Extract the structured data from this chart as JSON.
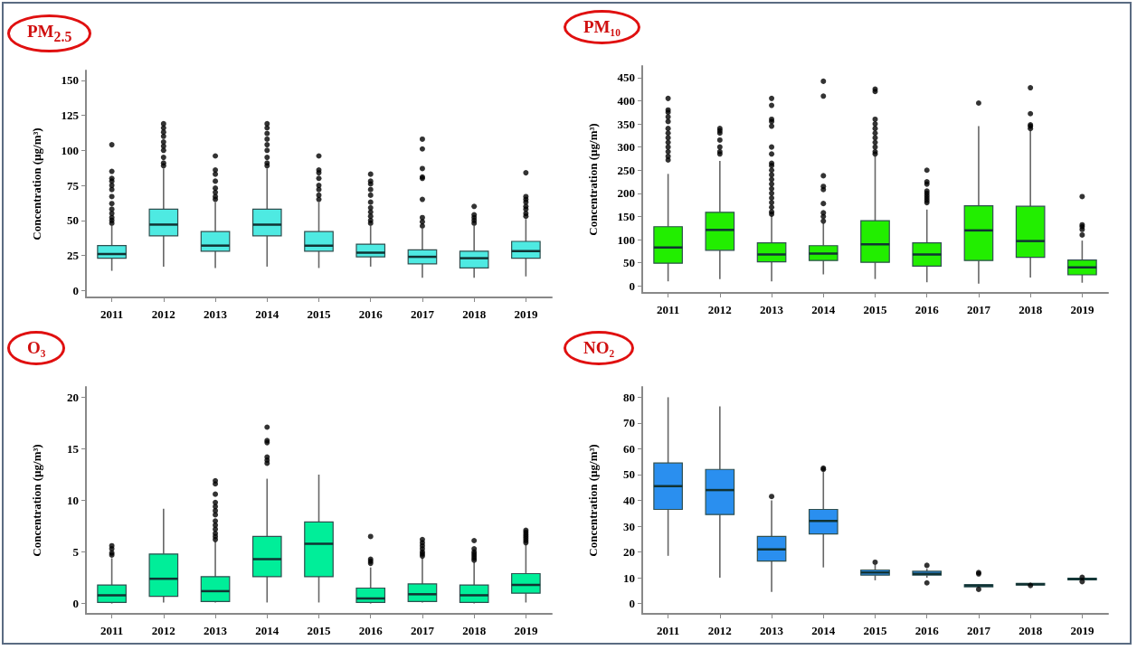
{
  "chart_data": [
    {
      "type": "box",
      "title": "PM$_{2.5}$",
      "ylabel": "Concentration (µg/m³)",
      "categories": [
        "2011",
        "2012",
        "2013",
        "2014",
        "2015",
        "2016",
        "2017",
        "2018",
        "2019"
      ],
      "ylim": [
        -5,
        157
      ],
      "yticks": [
        0,
        25,
        50,
        75,
        100,
        125,
        150
      ],
      "grid": false,
      "series": [
        {
          "color": "#4eeae2",
          "boxes": [
            {
              "low": 14,
              "q1": 23,
              "median": 26,
              "q3": 32,
              "high": 46,
              "outliers": [
                48,
                50,
                52,
                55,
                58,
                62,
                67,
                72,
                75,
                78,
                80,
                85,
                104
              ]
            },
            {
              "low": 17,
              "q1": 39,
              "median": 47,
              "q3": 58,
              "high": 87,
              "outliers": [
                89,
                91,
                95,
                100,
                103,
                106,
                110,
                113,
                116,
                119
              ]
            },
            {
              "low": 16,
              "q1": 28,
              "median": 32,
              "q3": 42,
              "high": 63,
              "outliers": [
                65,
                67,
                70,
                73,
                78,
                83,
                86,
                96
              ]
            },
            {
              "low": 17,
              "q1": 39,
              "median": 47,
              "q3": 58,
              "high": 87,
              "outliers": [
                89,
                91,
                95,
                100,
                104,
                108,
                112,
                116,
                119
              ]
            },
            {
              "low": 16,
              "q1": 28,
              "median": 32,
              "q3": 42,
              "high": 63,
              "outliers": [
                65,
                68,
                72,
                75,
                80,
                84,
                86,
                96
              ]
            },
            {
              "low": 17,
              "q1": 24,
              "median": 27,
              "q3": 33,
              "high": 46,
              "outliers": [
                48,
                50,
                53,
                56,
                59,
                63,
                68,
                72,
                76,
                78,
                83
              ]
            },
            {
              "low": 9,
              "q1": 19,
              "median": 24,
              "q3": 29,
              "high": 44,
              "outliers": [
                46,
                49,
                52,
                65,
                80,
                81,
                87,
                101,
                108
              ]
            },
            {
              "low": 9,
              "q1": 16,
              "median": 23,
              "q3": 28,
              "high": 46,
              "outliers": [
                48,
                50,
                52,
                54,
                60
              ]
            },
            {
              "low": 10,
              "q1": 23,
              "median": 28,
              "q3": 35,
              "high": 51,
              "outliers": [
                53,
                55,
                58,
                60,
                63,
                65,
                67,
                84
              ]
            }
          ]
        }
      ]
    },
    {
      "type": "box",
      "title": "PM₁₀",
      "ylabel": "Concentration (µg/m³)",
      "categories": [
        "2011",
        "2012",
        "2013",
        "2014",
        "2015",
        "2016",
        "2017",
        "2018",
        "2019"
      ],
      "ylim": [
        -15,
        475
      ],
      "yticks": [
        0,
        50,
        100,
        150,
        200,
        250,
        300,
        350,
        400,
        450
      ],
      "grid": false,
      "series": [
        {
          "color": "#22ee00",
          "boxes": [
            {
              "low": 10,
              "q1": 49,
              "median": 83,
              "q3": 128,
              "high": 242,
              "outliers": [
                272,
                280,
                290,
                300,
                310,
                320,
                330,
                340,
                355,
                365,
                375,
                380,
                405
              ]
            },
            {
              "low": 15,
              "q1": 77,
              "median": 121,
              "q3": 159,
              "high": 270,
              "outliers": [
                285,
                290,
                300,
                315,
                330,
                335,
                340
              ]
            },
            {
              "low": 10,
              "q1": 52,
              "median": 68,
              "q3": 93,
              "high": 152,
              "outliers": [
                155,
                160,
                170,
                180,
                190,
                200,
                210,
                220,
                230,
                240,
                250,
                260,
                265,
                285,
                300,
                345,
                355,
                360,
                390,
                405
              ]
            },
            {
              "low": 25,
              "q1": 55,
              "median": 70,
              "q3": 87,
              "high": 135,
              "outliers": [
                140,
                150,
                158,
                178,
                208,
                215,
                238,
                410,
                442
              ]
            },
            {
              "low": 15,
              "q1": 51,
              "median": 90,
              "q3": 141,
              "high": 280,
              "outliers": [
                285,
                290,
                300,
                310,
                320,
                330,
                340,
                350,
                360,
                420,
                425
              ]
            },
            {
              "low": 8,
              "q1": 43,
              "median": 68,
              "q3": 93,
              "high": 165,
              "outliers": [
                180,
                185,
                190,
                195,
                200,
                205,
                220,
                225,
                250
              ]
            },
            {
              "low": 5,
              "q1": 55,
              "median": 120,
              "q3": 173,
              "high": 345,
              "outliers": [
                395
              ]
            },
            {
              "low": 18,
              "q1": 62,
              "median": 97,
              "q3": 172,
              "high": 335,
              "outliers": [
                340,
                345,
                348,
                372,
                428
              ]
            },
            {
              "low": 7,
              "q1": 24,
              "median": 40,
              "q3": 56,
              "high": 98,
              "outliers": [
                110,
                122,
                128,
                132,
                193
              ]
            }
          ]
        }
      ]
    },
    {
      "type": "box",
      "title": "O₃",
      "ylabel": "Concentration (µg/m³)",
      "categories": [
        "2011",
        "2012",
        "2013",
        "2014",
        "2015",
        "2016",
        "2017",
        "2018",
        "2019"
      ],
      "ylim": [
        -1,
        21
      ],
      "yticks": [
        0,
        5,
        10,
        15,
        20
      ],
      "grid": false,
      "series": [
        {
          "color": "#00ee99",
          "boxes": [
            {
              "low": 0,
              "q1": 0.1,
              "median": 0.8,
              "q3": 1.8,
              "high": 4.4,
              "outliers": [
                4.7,
                4.9,
                5.3,
                5.6
              ]
            },
            {
              "low": 0.1,
              "q1": 0.7,
              "median": 2.4,
              "q3": 4.8,
              "high": 9.2
            },
            {
              "low": 0.1,
              "q1": 0.2,
              "median": 1.2,
              "q3": 2.6,
              "high": 6.0,
              "outliers": [
                6.2,
                6.5,
                6.8,
                7.2,
                7.6,
                8.0,
                8.6,
                9.0,
                9.4,
                9.8,
                10.6,
                11.6,
                11.9
              ]
            },
            {
              "low": 0.1,
              "q1": 2.6,
              "median": 4.3,
              "q3": 6.5,
              "high": 12.1,
              "outliers": [
                13.6,
                13.9,
                14.2,
                15.6,
                15.8,
                17.1
              ]
            },
            {
              "low": 0.1,
              "q1": 2.6,
              "median": 5.8,
              "q3": 7.9,
              "high": 12.5
            },
            {
              "low": 0,
              "q1": 0.1,
              "median": 0.5,
              "q3": 1.5,
              "high": 3.5,
              "outliers": [
                3.9,
                4.1,
                4.3,
                6.5
              ]
            },
            {
              "low": 0.1,
              "q1": 0.2,
              "median": 0.9,
              "q3": 1.9,
              "high": 4.4,
              "outliers": [
                4.6,
                4.8,
                5.0,
                5.3,
                5.6,
                5.9,
                6.2
              ]
            },
            {
              "low": 0,
              "q1": 0.1,
              "median": 0.8,
              "q3": 1.8,
              "high": 4.0,
              "outliers": [
                4.2,
                4.4,
                4.6,
                4.8,
                5.0,
                5.3,
                6.1
              ]
            },
            {
              "low": 0.1,
              "q1": 1.0,
              "median": 1.8,
              "q3": 2.9,
              "high": 5.7,
              "outliers": [
                5.9,
                6.1,
                6.3,
                6.5,
                6.7,
                6.9,
                7.1
              ]
            }
          ]
        }
      ]
    },
    {
      "type": "box",
      "title": "NO₂",
      "ylabel": "Concentration (µg/m³)",
      "categories": [
        "2011",
        "2012",
        "2013",
        "2014",
        "2015",
        "2016",
        "2017",
        "2018",
        "2019"
      ],
      "ylim": [
        -4,
        84
      ],
      "yticks": [
        0,
        10,
        20,
        30,
        40,
        50,
        60,
        70,
        80
      ],
      "grid": false,
      "series": [
        {
          "color": "#2a8fef",
          "boxes": [
            {
              "low": 18.5,
              "q1": 36.5,
              "median": 45.5,
              "q3": 54.5,
              "high": 80
            },
            {
              "low": 10,
              "q1": 34.5,
              "median": 44,
              "q3": 52,
              "high": 76.5
            },
            {
              "low": 4.5,
              "q1": 16.5,
              "median": 21,
              "q3": 26,
              "high": 40,
              "outliers": [
                41.5
              ]
            },
            {
              "low": 14,
              "q1": 27,
              "median": 32,
              "q3": 36.5,
              "high": 51,
              "outliers": [
                52,
                52.5
              ]
            },
            {
              "low": 9,
              "q1": 11,
              "median": 12,
              "q3": 13,
              "high": 15,
              "outliers": [
                16
              ]
            },
            {
              "low": 10,
              "q1": 11,
              "median": 11.5,
              "q3": 12.5,
              "high": 13.5,
              "outliers": [
                8,
                14.8
              ]
            },
            {
              "low": 6.5,
              "q1": 6.5,
              "median": 7,
              "q3": 7.3,
              "high": 7.5,
              "outliers": [
                5.5,
                11.5,
                12
              ]
            },
            {
              "low": 7,
              "q1": 7.2,
              "median": 7.5,
              "q3": 7.8,
              "high": 8,
              "outliers": [
                7
              ]
            },
            {
              "low": 9,
              "q1": 9.2,
              "median": 9.5,
              "q3": 9.8,
              "high": 10,
              "outliers": [
                8.5,
                10.2
              ]
            }
          ]
        }
      ]
    }
  ]
}
